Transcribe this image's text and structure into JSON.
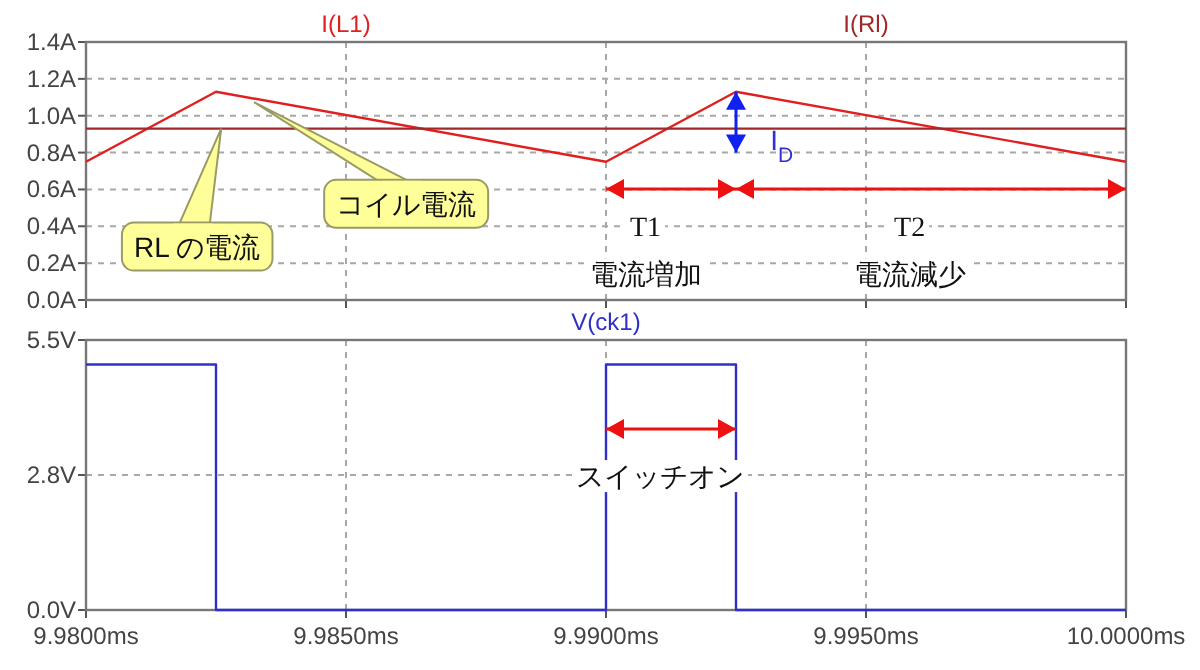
{
  "chart_data": [
    {
      "type": "line",
      "xlim": [
        9.98,
        10.0
      ],
      "xticks": [
        9.98,
        9.985,
        9.99,
        9.995,
        10.0
      ],
      "ylim": [
        0,
        1.4
      ],
      "yticks": [
        {
          "value": 0,
          "label": "0.0A"
        },
        {
          "value": 0.2,
          "label": "0.2A"
        },
        {
          "value": 0.4,
          "label": "0.4A"
        },
        {
          "value": 0.6,
          "label": "0.6A"
        },
        {
          "value": 0.8,
          "label": "0.8A"
        },
        {
          "value": 1.0,
          "label": "1.0A"
        },
        {
          "value": 1.2,
          "label": "1.2A"
        },
        {
          "value": 1.4,
          "label": "1.4A"
        }
      ],
      "tick_labels": "y",
      "grid": true,
      "legend": "top",
      "series": [
        {
          "name": "I(L1)",
          "color": "#e02020",
          "x": [
            9.98,
            9.9825,
            9.99,
            9.9925,
            10.0
          ],
          "values": [
            0.75,
            1.13,
            0.75,
            1.13,
            0.75
          ]
        },
        {
          "name": "I(Rl)",
          "color": "#a02828",
          "x": [
            9.98,
            10.0
          ],
          "values": [
            0.93,
            0.93
          ]
        }
      ],
      "annotations": [
        {
          "text": "RL の電流",
          "x": 9.9826,
          "y": 0.93
        },
        "コイル電流",
        "I$_{D}$",
        "T1",
        "電流増加",
        "T2",
        "電流減少"
      ]
    },
    {
      "type": "line",
      "xlim": [
        9.98,
        10.0
      ],
      "xticks": [
        {
          "value": 9.98,
          "label": "9.9800ms"
        },
        {
          "value": 9.985,
          "label": "9.9850ms"
        },
        {
          "value": 9.99,
          "label": "9.9900ms"
        },
        {
          "value": 9.995,
          "label": "9.9950ms"
        },
        {
          "value": 10.0,
          "label": "10.0000ms"
        }
      ],
      "ylim": [
        0,
        5.5
      ],
      "yticks": [
        {
          "value": 0,
          "label": "0.0V"
        },
        {
          "value": 2.75,
          "label": "2.8V"
        },
        {
          "value": 5.5,
          "label": "5.5V"
        }
      ],
      "grid": true,
      "legend": "top",
      "series": [
        {
          "name": "V(ck1)",
          "color": "#3030c8",
          "x": [
            9.98,
            9.9825,
            9.9825,
            9.99,
            9.99,
            9.9925,
            9.9925,
            10.0
          ],
          "values": [
            5,
            5,
            0,
            0,
            5,
            5,
            0,
            0
          ]
        }
      ],
      "annotations": [
        "スイッチオン"
      ]
    }
  ]
}
